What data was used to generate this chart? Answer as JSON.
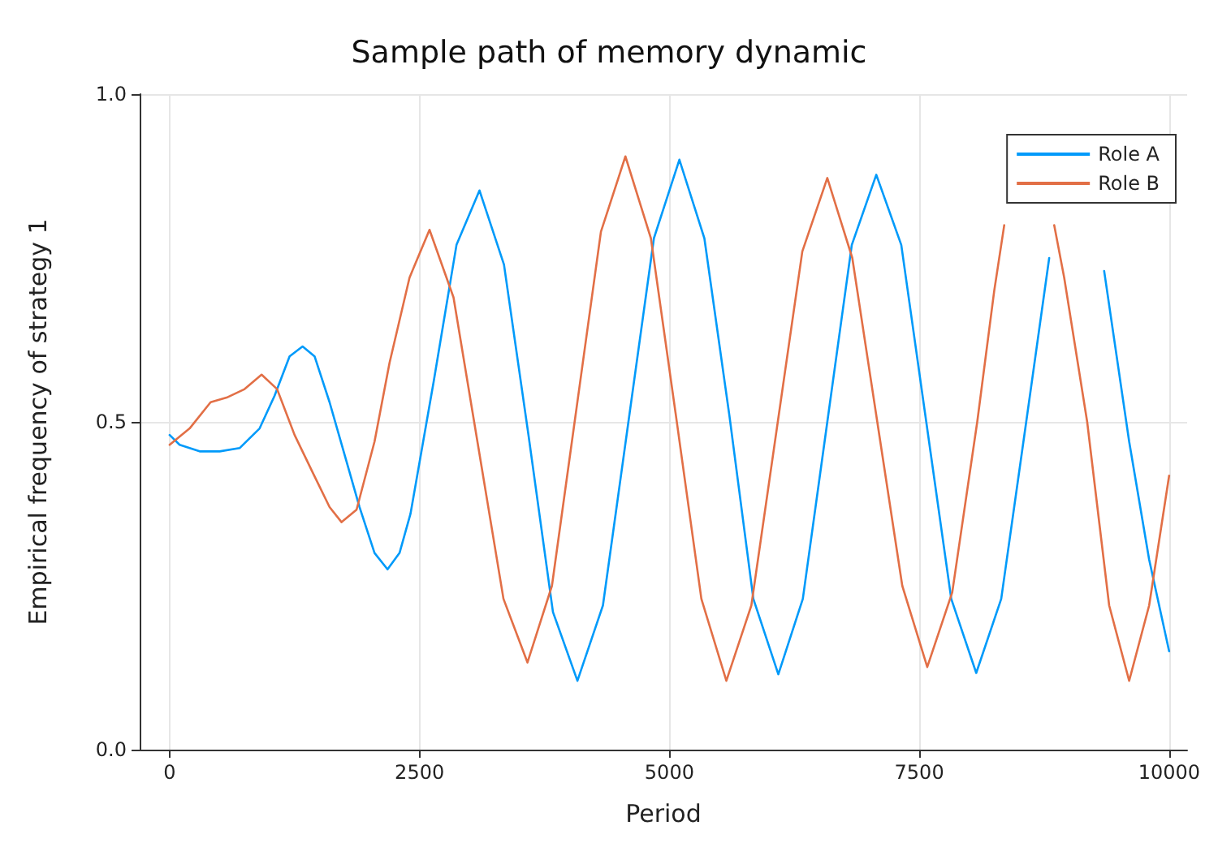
{
  "chart_data": {
    "type": "line",
    "title": "Sample path of memory dynamic",
    "xlabel": "Period",
    "ylabel": "Empirical frequency of strategy 1",
    "xlim": [
      -300,
      10180
    ],
    "xticks": [
      0,
      2500,
      5000,
      7500,
      10000
    ],
    "ylim": [
      0,
      1
    ],
    "yticks": [
      {
        "value": 0,
        "label": "0.0"
      },
      {
        "value": 0.5,
        "label": "0.5"
      },
      {
        "value": 1,
        "label": "1.0"
      }
    ],
    "grid": true,
    "legend": "top right",
    "marker": "none",
    "line_style": "solid",
    "series": [
      {
        "name": "Role A",
        "color": "#009afa",
        "x": [
          0,
          100,
          300,
          500,
          700,
          900,
          1050,
          1200,
          1330,
          1450,
          1600,
          1750,
          1900,
          2050,
          2180,
          2300,
          2410,
          2640,
          2870,
          3100,
          3345,
          3590,
          3835,
          4080,
          4335,
          4590,
          4845,
          5100,
          5350,
          5600,
          5840,
          6090,
          6335,
          6580,
          6825,
          7070,
          7320,
          7570,
          7820,
          8070,
          8320,
          8570,
          8800,
          9000,
          9100,
          9350,
          9600,
          9800,
          10000
        ],
        "values": [
          0.48,
          0.465,
          0.455,
          0.455,
          0.46,
          0.49,
          0.54,
          0.6,
          0.615,
          0.6,
          0.53,
          0.45,
          0.37,
          0.3,
          0.275,
          0.3,
          0.36,
          0.56,
          0.77,
          0.853,
          0.74,
          0.48,
          0.21,
          0.105,
          0.22,
          0.5,
          0.78,
          0.9,
          0.78,
          0.51,
          0.23,
          0.115,
          0.23,
          0.5,
          0.77,
          0.877,
          0.77,
          0.5,
          0.23,
          0.117,
          0.23,
          0.5,
          0.75,
          null,
          null,
          0.73,
          0.47,
          0.29,
          0.15
        ]
      },
      {
        "name": "Role B",
        "color": "#e26f46",
        "x": [
          0,
          200,
          410,
          570,
          750,
          920,
          1075,
          1250,
          1440,
          1600,
          1720,
          1870,
          2050,
          2200,
          2400,
          2600,
          2840,
          3090,
          3340,
          3580,
          3825,
          4070,
          4315,
          4560,
          4815,
          5065,
          5320,
          5570,
          5820,
          6075,
          6330,
          6580,
          6830,
          7080,
          7330,
          7580,
          7830,
          8080,
          8250,
          8350,
          8500,
          8600,
          8850,
          8950,
          9180,
          9400,
          9600,
          9800,
          10000
        ],
        "values": [
          0.465,
          0.49,
          0.53,
          0.537,
          0.55,
          0.572,
          0.55,
          0.48,
          0.42,
          0.37,
          0.347,
          0.366,
          0.47,
          0.59,
          0.72,
          0.793,
          0.69,
          0.46,
          0.23,
          0.133,
          0.25,
          0.52,
          0.79,
          0.905,
          0.78,
          0.51,
          0.23,
          0.105,
          0.22,
          0.49,
          0.76,
          0.872,
          0.75,
          0.5,
          0.25,
          0.126,
          0.24,
          0.5,
          0.7,
          0.8,
          null,
          null,
          0.8,
          0.72,
          0.5,
          0.22,
          0.105,
          0.22,
          0.418
        ]
      }
    ]
  }
}
